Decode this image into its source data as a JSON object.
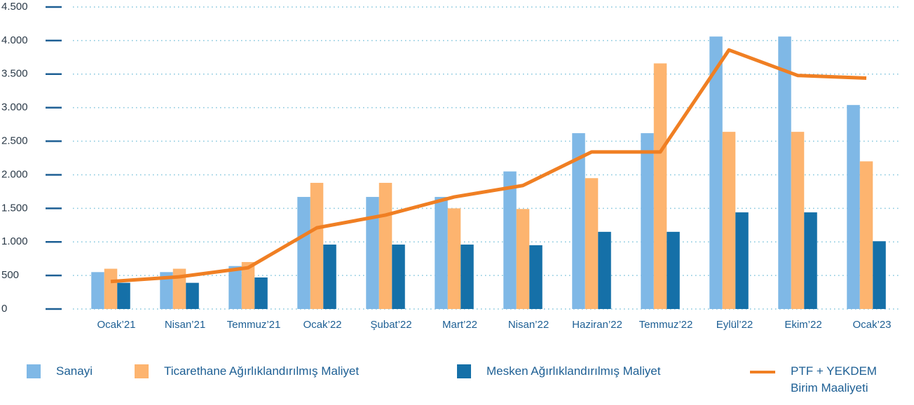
{
  "chart_data": {
    "type": "bar_line",
    "categories": [
      "Ocak’21",
      "Nisan’21",
      "Temmuz’21",
      "Ocak’22",
      "Şubat’22",
      "Mart’22",
      "Nisan’22",
      "Haziran’22",
      "Temmuz’22",
      "Eylül’22",
      "Ekim’22",
      "Ocak’23"
    ],
    "series": [
      {
        "name": "Sanayi",
        "color": "#7fb8e6",
        "type": "bar",
        "values": [
          550,
          550,
          640,
          1670,
          1670,
          1670,
          2050,
          2620,
          2620,
          4060,
          4060,
          3040
        ]
      },
      {
        "name": "Ticarethane Ağırlıklandırılmış Maliyet",
        "color": "#fdb46f",
        "type": "bar",
        "values": [
          600,
          600,
          700,
          1880,
          1880,
          1500,
          1490,
          1950,
          3660,
          2640,
          2640,
          2200
        ]
      },
      {
        "name": "Mesken Ağırlıklandırılmış Maliyet",
        "color": "#1570a8",
        "type": "bar",
        "values": [
          390,
          390,
          470,
          960,
          960,
          960,
          950,
          1150,
          1150,
          1440,
          1440,
          1010
        ]
      },
      {
        "name": "PTF + YEKDEM Birim Maaliyeti",
        "color": "#f07f23",
        "type": "line",
        "values": [
          410,
          480,
          615,
          1210,
          1400,
          1670,
          1840,
          2340,
          2340,
          3860,
          3480,
          3440
        ]
      }
    ],
    "ylim": [
      0,
      4500
    ],
    "yticks": [
      0,
      500,
      {
        "value": 1000,
        "label": "1.000"
      },
      {
        "value": 1500,
        "label": "1.500"
      },
      {
        "value": 2000,
        "label": "2.000"
      },
      {
        "value": 2500,
        "label": "2.500"
      },
      {
        "value": 3000,
        "label": "3.000"
      },
      {
        "value": 3500,
        "label": "3.500"
      },
      {
        "value": 4000,
        "label": "4.000"
      },
      {
        "value": 4500,
        "label": "4.500"
      }
    ],
    "grid": true,
    "legend": "bottom"
  }
}
